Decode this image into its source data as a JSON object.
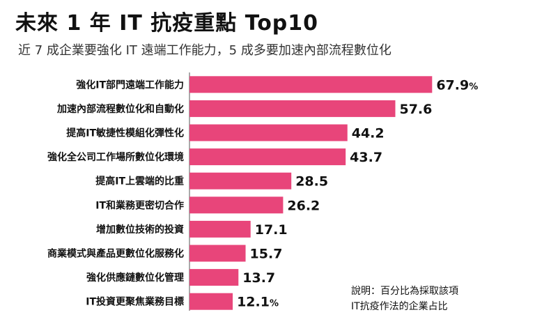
{
  "header": {
    "title": "未來 1 年 IT 抗疫重點 Top10",
    "subtitle": "近 7 成企業要強化 IT 遠端工作能力，5 成多要加速內部流程數位化"
  },
  "note": {
    "line1": "說明：百分比為採取該項",
    "line2": "IT抗疫作法的企業占比"
  },
  "colors": {
    "bar": "#e8457a",
    "axis": "#555555"
  },
  "chart_data": {
    "type": "bar",
    "orientation": "horizontal",
    "categories": [
      "強化IT部門遠端工作能力",
      "加速內部流程數位化和自動化",
      "提高IT敏捷性模組化彈性化",
      "強化全公司工作場所數位化環境",
      "提高IT上雲端的比重",
      "IT和業務更密切合作",
      "增加數位技術的投資",
      "商業模式與產品更數位化服務化",
      "強化供應鏈數位化管理",
      "IT投資更聚焦業務目標"
    ],
    "values": [
      67.9,
      57.6,
      44.2,
      43.7,
      28.5,
      26.2,
      17.1,
      15.7,
      13.7,
      12.1
    ],
    "value_labels": [
      "67.9",
      "57.6",
      "44.2",
      "43.7",
      "28.5",
      "26.2",
      "17.1",
      "15.7",
      "13.7",
      "12.1"
    ],
    "unit": "%",
    "unit_shown_on": [
      0,
      9
    ],
    "title": "未來 1 年 IT 抗疫重點 Top10",
    "xlabel": "",
    "ylabel": "",
    "xlim": [
      0,
      70
    ],
    "grid": false,
    "legend": "none"
  }
}
